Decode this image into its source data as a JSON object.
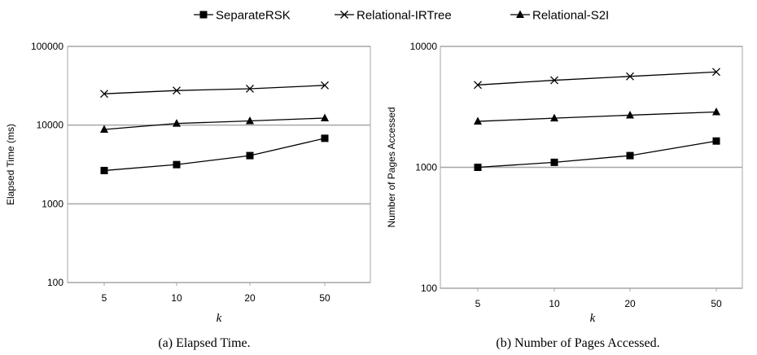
{
  "legend": [
    {
      "label": "SeparateRSK",
      "marker": "square"
    },
    {
      "label": "Relational-IRTree",
      "marker": "x"
    },
    {
      "label": "Relational-S2I",
      "marker": "triangle"
    }
  ],
  "chart_data": [
    {
      "type": "line",
      "ylabel": "Elapsed Time (ms)",
      "xlabel": "k",
      "caption": "(a) Elapsed Time.",
      "categories": [
        "5",
        "10",
        "20",
        "50"
      ],
      "yscale": "log",
      "ylim": [
        100,
        100000
      ],
      "yticks": [
        "100",
        "1000",
        "10000",
        "100000"
      ],
      "grid": "horizontal",
      "series": [
        {
          "name": "SeparateRSK",
          "marker": "square",
          "values": [
            2650,
            3150,
            4100,
            6800
          ]
        },
        {
          "name": "Relational-IRTree",
          "marker": "x",
          "values": [
            25000,
            27500,
            29000,
            32000
          ]
        },
        {
          "name": "Relational-S2I",
          "marker": "triangle",
          "values": [
            8800,
            10500,
            11300,
            12300
          ]
        }
      ]
    },
    {
      "type": "line",
      "ylabel": "Number of  Pages Accessed",
      "xlabel": "k",
      "caption": "(b) Number of Pages Accessed.",
      "categories": [
        "5",
        "10",
        "20",
        "50"
      ],
      "yscale": "log",
      "ylim": [
        100,
        10000
      ],
      "yticks": [
        "100",
        "1000",
        "10000"
      ],
      "grid": "horizontal",
      "series": [
        {
          "name": "SeparateRSK",
          "marker": "square",
          "values": [
            1000,
            1100,
            1250,
            1650
          ]
        },
        {
          "name": "Relational-IRTree",
          "marker": "x",
          "values": [
            4800,
            5250,
            5650,
            6150
          ]
        },
        {
          "name": "Relational-S2I",
          "marker": "triangle",
          "values": [
            2400,
            2550,
            2700,
            2870
          ]
        }
      ]
    }
  ]
}
